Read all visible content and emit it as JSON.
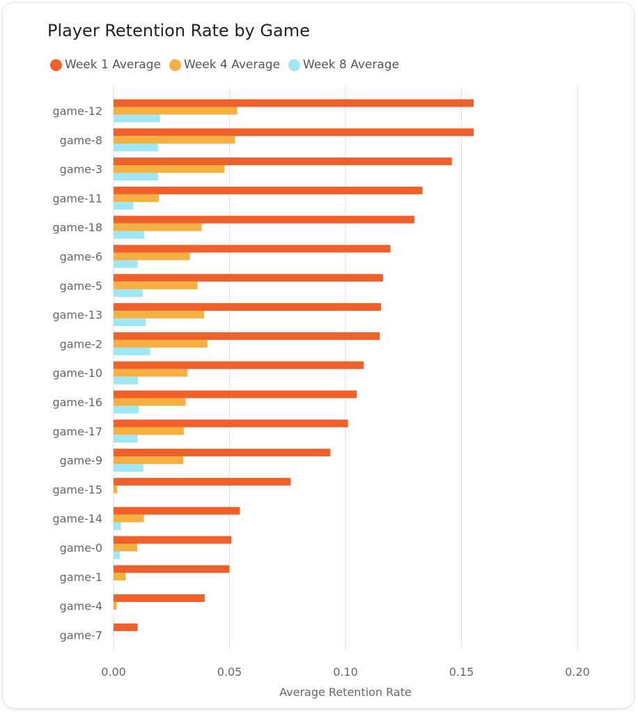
{
  "chart_data": {
    "type": "bar",
    "orientation": "horizontal",
    "title": "Player Retention Rate by Game",
    "xlabel": "Average Retention Rate",
    "ylabel": "",
    "xlim": [
      0,
      0.2
    ],
    "x_ticks": [
      "0.00",
      "0.05",
      "0.10",
      "0.15",
      "0.20"
    ],
    "x_tick_values": [
      0,
      0.05,
      0.1,
      0.15,
      0.2
    ],
    "grid": "vertical",
    "legend_position": "top-left",
    "categories": [
      "game-12",
      "game-8",
      "game-3",
      "game-11",
      "game-18",
      "game-6",
      "game-5",
      "game-13",
      "game-2",
      "game-10",
      "game-16",
      "game-17",
      "game-9",
      "game-15",
      "game-14",
      "game-0",
      "game-1",
      "game-4",
      "game-7"
    ],
    "series": [
      {
        "name": "Week 1 Average",
        "color": "#F0602B",
        "values": [
          0.1553,
          0.1553,
          0.1459,
          0.1332,
          0.1297,
          0.1194,
          0.1162,
          0.1153,
          0.1148,
          0.1079,
          0.1049,
          0.1011,
          0.0935,
          0.0764,
          0.0545,
          0.0508,
          0.05,
          0.0393,
          0.0104
        ]
      },
      {
        "name": "Week 4 Average",
        "color": "#F5B041",
        "values": [
          0.0533,
          0.0524,
          0.0479,
          0.0195,
          0.038,
          0.0329,
          0.0362,
          0.039,
          0.0405,
          0.0319,
          0.0311,
          0.0303,
          0.0301,
          0.0016,
          0.0131,
          0.0102,
          0.0052,
          0.0014,
          0.0
        ]
      },
      {
        "name": "Week 8 Average",
        "color": "#A0E7F5",
        "values": [
          0.02,
          0.0192,
          0.0192,
          0.0086,
          0.0133,
          0.0104,
          0.0126,
          0.0139,
          0.0158,
          0.0105,
          0.0108,
          0.0104,
          0.0128,
          0.0,
          0.0032,
          0.0028,
          0.0,
          0.0,
          0.0
        ]
      }
    ]
  }
}
